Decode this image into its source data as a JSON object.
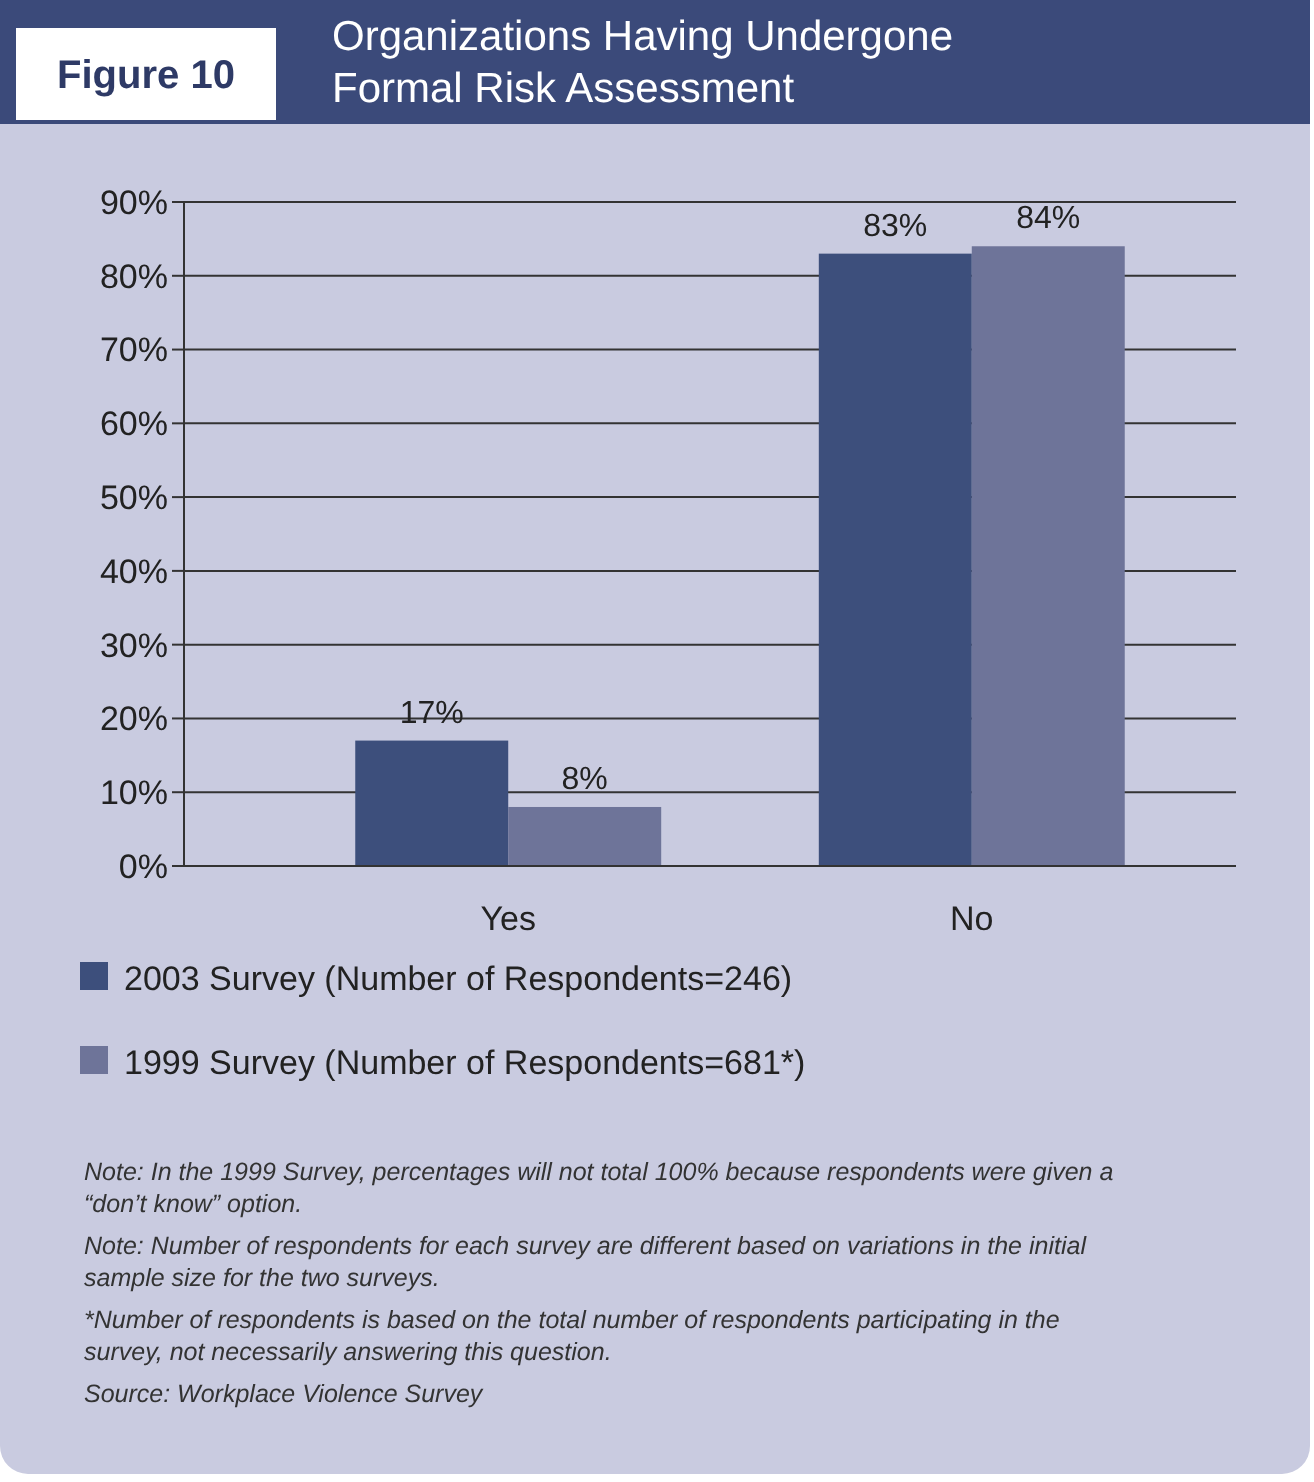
{
  "chart_data": {
    "type": "bar",
    "title": "Organizations Having Undergone Formal Risk Assessment",
    "subtitle": "Figure 10",
    "categories": [
      "Yes",
      "No"
    ],
    "series": [
      {
        "name": "2003 Survey (Number of Respondents=246)",
        "color": "#3d4f7c",
        "values": [
          17,
          83
        ],
        "value_labels": [
          "17%",
          "83%"
        ]
      },
      {
        "name": "1999 Survey (Number of Respondents=681*)",
        "color": "#6e7499",
        "values": [
          8,
          84
        ],
        "value_labels": [
          "8%",
          "84%"
        ]
      }
    ],
    "ylim": [
      0,
      90
    ],
    "yticks": [
      {
        "value": 0,
        "label": "0%"
      },
      {
        "value": 10,
        "label": "10%"
      },
      {
        "value": 20,
        "label": "20%"
      },
      {
        "value": 30,
        "label": "30%"
      },
      {
        "value": 40,
        "label": "40%"
      },
      {
        "value": 50,
        "label": "50%"
      },
      {
        "value": 60,
        "label": "60%"
      },
      {
        "value": 70,
        "label": "70%"
      },
      {
        "value": 80,
        "label": "80%"
      },
      {
        "value": 90,
        "label": "90%"
      }
    ],
    "grid": "y",
    "legend": "bottom",
    "annotations": [
      "Note: In the 1999 Survey, percentages will not total 100% because respondents were given a “don’t know” option.",
      "Note: Number of respondents for each survey are different based on variations in the initial sample size for the two surveys.",
      "*Number of respondents is based on the total number of respondents participating in the survey, not necessarily answering this question.",
      "Source: Workplace Violence Survey"
    ]
  }
}
